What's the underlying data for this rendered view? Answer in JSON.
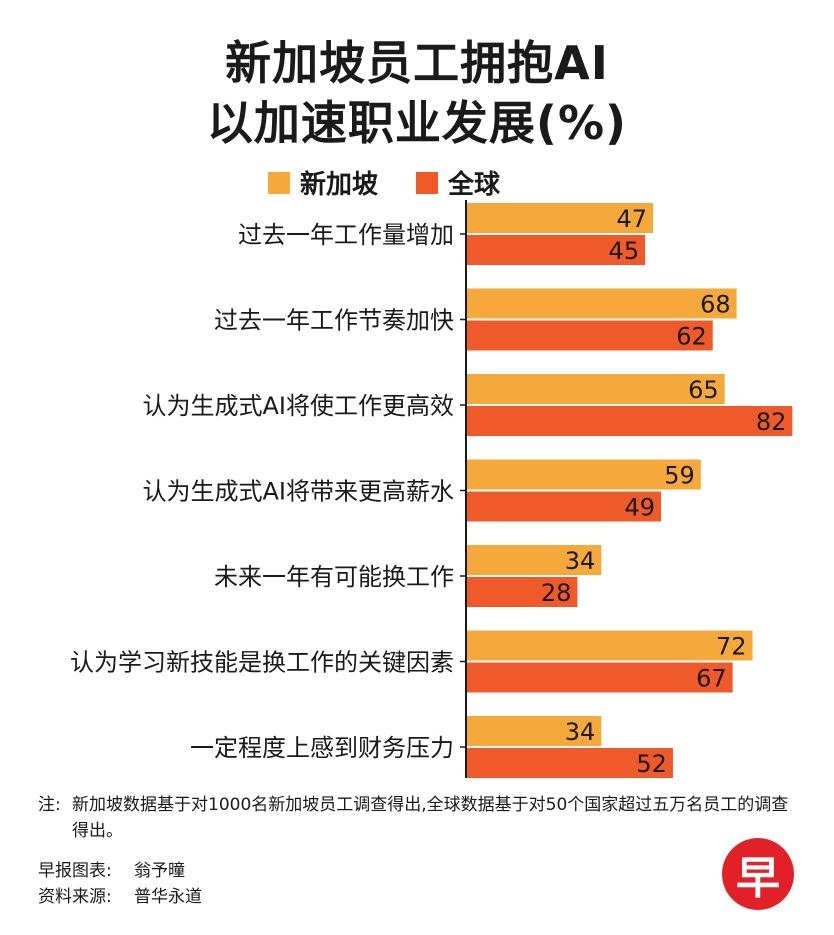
{
  "title_line1": "新加坡员工拥抱AI",
  "title_line2": "以加速职业发展(%)",
  "legend": [
    {
      "label": "新加坡",
      "color": "#f5a93a"
    },
    {
      "label": "全球",
      "color": "#ef5a2a"
    }
  ],
  "chart_data": {
    "type": "bar",
    "orientation": "horizontal",
    "categories": [
      "过去一年工作量增加",
      "过去一年工作节奏加快",
      "认为生成式AI将使工作更高效",
      "认为生成式AI将带来更高薪水",
      "未来一年有可能换工作",
      "认为学习新技能是换工作的关键因素",
      "一定程度上感到财务压力"
    ],
    "series": [
      {
        "name": "新加坡",
        "color": "#f5a93a",
        "values": [
          47,
          68,
          65,
          59,
          34,
          72,
          34
        ]
      },
      {
        "name": "全球",
        "color": "#ef5a2a",
        "values": [
          45,
          62,
          82,
          49,
          28,
          67,
          52
        ]
      }
    ],
    "xlim": [
      0,
      85
    ],
    "grid": false,
    "legend_position": "top",
    "data_labels": true
  },
  "note_label": "注:",
  "note_text": "新加坡数据基于对1000名新加坡员工调查得出,全球数据基于对50个国家超过五万名员工的调查得出。",
  "credits": [
    {
      "key": "早报图表:",
      "value": "翁予曈"
    },
    {
      "key": "资料来源:",
      "value": "普华永道"
    }
  ],
  "logo_text": "早"
}
